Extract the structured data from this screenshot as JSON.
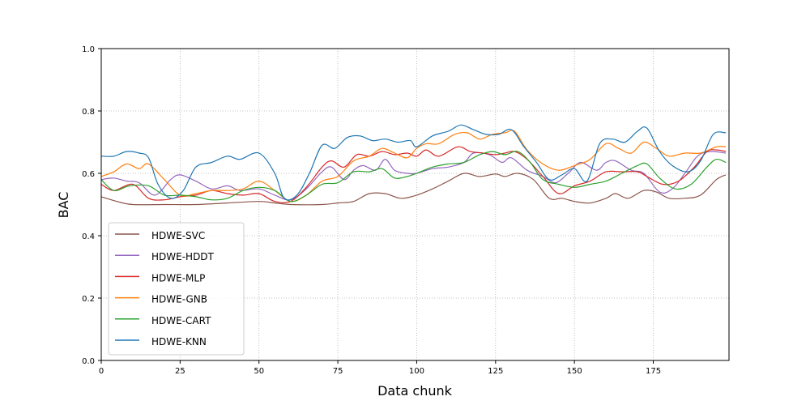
{
  "chart_data": {
    "type": "line",
    "title": "",
    "xlabel": "Data chunk",
    "ylabel": "BAC",
    "xlim": [
      0,
      199
    ],
    "ylim": [
      0.0,
      1.0
    ],
    "xticks": [
      0,
      25,
      50,
      75,
      100,
      125,
      150,
      175
    ],
    "yticks": [
      0.0,
      0.2,
      0.4,
      0.6,
      0.8,
      1.0
    ],
    "xtick_labels": [
      "0",
      "25",
      "50",
      "75",
      "100",
      "125",
      "150",
      "175"
    ],
    "ytick_labels": [
      "0.0",
      "0.2",
      "0.4",
      "0.6",
      "0.8",
      "1.0"
    ],
    "grid": true,
    "legend_position": "lower-left",
    "series": [
      {
        "name": "HDWE-SVC",
        "color": "#8c564b",
        "points": [
          [
            0,
            0.525
          ],
          [
            5,
            0.51
          ],
          [
            10,
            0.5
          ],
          [
            20,
            0.5
          ],
          [
            30,
            0.5
          ],
          [
            40,
            0.505
          ],
          [
            50,
            0.51
          ],
          [
            55,
            0.505
          ],
          [
            60,
            0.5
          ],
          [
            70,
            0.5
          ],
          [
            75,
            0.505
          ],
          [
            80,
            0.51
          ],
          [
            85,
            0.535
          ],
          [
            90,
            0.535
          ],
          [
            95,
            0.52
          ],
          [
            100,
            0.53
          ],
          [
            105,
            0.55
          ],
          [
            110,
            0.575
          ],
          [
            115,
            0.6
          ],
          [
            120,
            0.59
          ],
          [
            125,
            0.598
          ],
          [
            128,
            0.59
          ],
          [
            132,
            0.6
          ],
          [
            137,
            0.58
          ],
          [
            142,
            0.52
          ],
          [
            146,
            0.52
          ],
          [
            150,
            0.51
          ],
          [
            155,
            0.505
          ],
          [
            160,
            0.52
          ],
          [
            163,
            0.535
          ],
          [
            167,
            0.52
          ],
          [
            172,
            0.545
          ],
          [
            176,
            0.54
          ],
          [
            180,
            0.52
          ],
          [
            185,
            0.52
          ],
          [
            190,
            0.53
          ],
          [
            195,
            0.58
          ],
          [
            198,
            0.595
          ]
        ]
      },
      {
        "name": "HDWE-HDDT",
        "color": "#9467bd",
        "points": [
          [
            0,
            0.58
          ],
          [
            4,
            0.585
          ],
          [
            8,
            0.575
          ],
          [
            12,
            0.57
          ],
          [
            17,
            0.53
          ],
          [
            22,
            0.58
          ],
          [
            25,
            0.595
          ],
          [
            30,
            0.575
          ],
          [
            35,
            0.55
          ],
          [
            40,
            0.56
          ],
          [
            44,
            0.545
          ],
          [
            50,
            0.55
          ],
          [
            55,
            0.53
          ],
          [
            60,
            0.515
          ],
          [
            65,
            0.55
          ],
          [
            70,
            0.605
          ],
          [
            73,
            0.62
          ],
          [
            77,
            0.58
          ],
          [
            80,
            0.61
          ],
          [
            83,
            0.625
          ],
          [
            87,
            0.61
          ],
          [
            90,
            0.645
          ],
          [
            93,
            0.61
          ],
          [
            97,
            0.6
          ],
          [
            100,
            0.6
          ],
          [
            105,
            0.615
          ],
          [
            110,
            0.62
          ],
          [
            115,
            0.635
          ],
          [
            118,
            0.665
          ],
          [
            123,
            0.66
          ],
          [
            127,
            0.635
          ],
          [
            130,
            0.65
          ],
          [
            135,
            0.61
          ],
          [
            140,
            0.59
          ],
          [
            144,
            0.57
          ],
          [
            148,
            0.6
          ],
          [
            152,
            0.635
          ],
          [
            157,
            0.61
          ],
          [
            160,
            0.635
          ],
          [
            163,
            0.64
          ],
          [
            168,
            0.61
          ],
          [
            172,
            0.6
          ],
          [
            177,
            0.54
          ],
          [
            181,
            0.55
          ],
          [
            185,
            0.6
          ],
          [
            189,
            0.655
          ],
          [
            193,
            0.67
          ],
          [
            198,
            0.665
          ]
        ]
      },
      {
        "name": "HDWE-MLP",
        "color": "#d62728",
        "points": [
          [
            0,
            0.565
          ],
          [
            4,
            0.545
          ],
          [
            10,
            0.565
          ],
          [
            15,
            0.52
          ],
          [
            20,
            0.515
          ],
          [
            25,
            0.525
          ],
          [
            30,
            0.53
          ],
          [
            35,
            0.545
          ],
          [
            40,
            0.535
          ],
          [
            45,
            0.53
          ],
          [
            50,
            0.535
          ],
          [
            55,
            0.51
          ],
          [
            60,
            0.51
          ],
          [
            65,
            0.555
          ],
          [
            70,
            0.62
          ],
          [
            73,
            0.64
          ],
          [
            77,
            0.62
          ],
          [
            81,
            0.66
          ],
          [
            85,
            0.655
          ],
          [
            89,
            0.67
          ],
          [
            93,
            0.66
          ],
          [
            97,
            0.665
          ],
          [
            100,
            0.655
          ],
          [
            103,
            0.675
          ],
          [
            107,
            0.655
          ],
          [
            113,
            0.685
          ],
          [
            117,
            0.67
          ],
          [
            121,
            0.665
          ],
          [
            125,
            0.66
          ],
          [
            128,
            0.665
          ],
          [
            131,
            0.67
          ],
          [
            135,
            0.645
          ],
          [
            140,
            0.59
          ],
          [
            145,
            0.535
          ],
          [
            150,
            0.56
          ],
          [
            155,
            0.575
          ],
          [
            160,
            0.605
          ],
          [
            165,
            0.605
          ],
          [
            170,
            0.605
          ],
          [
            173,
            0.59
          ],
          [
            178,
            0.565
          ],
          [
            183,
            0.575
          ],
          [
            188,
            0.62
          ],
          [
            192,
            0.67
          ],
          [
            195,
            0.675
          ],
          [
            198,
            0.67
          ]
        ]
      },
      {
        "name": "HDWE-GNB",
        "color": "#ff7f0e",
        "points": [
          [
            0,
            0.59
          ],
          [
            4,
            0.605
          ],
          [
            8,
            0.63
          ],
          [
            12,
            0.615
          ],
          [
            15,
            0.63
          ],
          [
            20,
            0.58
          ],
          [
            25,
            0.53
          ],
          [
            30,
            0.535
          ],
          [
            35,
            0.545
          ],
          [
            40,
            0.545
          ],
          [
            45,
            0.55
          ],
          [
            50,
            0.575
          ],
          [
            55,
            0.545
          ],
          [
            60,
            0.51
          ],
          [
            65,
            0.53
          ],
          [
            70,
            0.575
          ],
          [
            75,
            0.59
          ],
          [
            80,
            0.64
          ],
          [
            85,
            0.655
          ],
          [
            89,
            0.68
          ],
          [
            93,
            0.665
          ],
          [
            97,
            0.65
          ],
          [
            100,
            0.68
          ],
          [
            103,
            0.695
          ],
          [
            107,
            0.695
          ],
          [
            112,
            0.725
          ],
          [
            116,
            0.73
          ],
          [
            120,
            0.71
          ],
          [
            124,
            0.725
          ],
          [
            128,
            0.73
          ],
          [
            131,
            0.735
          ],
          [
            135,
            0.675
          ],
          [
            140,
            0.63
          ],
          [
            145,
            0.61
          ],
          [
            150,
            0.625
          ],
          [
            155,
            0.645
          ],
          [
            160,
            0.695
          ],
          [
            164,
            0.68
          ],
          [
            168,
            0.665
          ],
          [
            172,
            0.7
          ],
          [
            176,
            0.68
          ],
          [
            180,
            0.655
          ],
          [
            185,
            0.665
          ],
          [
            190,
            0.665
          ],
          [
            195,
            0.685
          ],
          [
            198,
            0.685
          ]
        ]
      },
      {
        "name": "HDWE-CART",
        "color": "#2ca02c",
        "points": [
          [
            0,
            0.58
          ],
          [
            4,
            0.545
          ],
          [
            9,
            0.56
          ],
          [
            15,
            0.56
          ],
          [
            20,
            0.53
          ],
          [
            25,
            0.53
          ],
          [
            30,
            0.525
          ],
          [
            35,
            0.515
          ],
          [
            40,
            0.52
          ],
          [
            45,
            0.545
          ],
          [
            50,
            0.555
          ],
          [
            55,
            0.545
          ],
          [
            60,
            0.51
          ],
          [
            65,
            0.53
          ],
          [
            70,
            0.565
          ],
          [
            75,
            0.57
          ],
          [
            80,
            0.605
          ],
          [
            85,
            0.605
          ],
          [
            89,
            0.615
          ],
          [
            93,
            0.585
          ],
          [
            97,
            0.59
          ],
          [
            100,
            0.6
          ],
          [
            105,
            0.62
          ],
          [
            110,
            0.63
          ],
          [
            115,
            0.635
          ],
          [
            120,
            0.66
          ],
          [
            124,
            0.67
          ],
          [
            128,
            0.66
          ],
          [
            132,
            0.67
          ],
          [
            136,
            0.635
          ],
          [
            140,
            0.58
          ],
          [
            145,
            0.565
          ],
          [
            150,
            0.555
          ],
          [
            155,
            0.565
          ],
          [
            160,
            0.575
          ],
          [
            165,
            0.6
          ],
          [
            170,
            0.625
          ],
          [
            173,
            0.63
          ],
          [
            177,
            0.585
          ],
          [
            182,
            0.55
          ],
          [
            187,
            0.565
          ],
          [
            192,
            0.62
          ],
          [
            195,
            0.645
          ],
          [
            198,
            0.635
          ]
        ]
      },
      {
        "name": "HDWE-KNN",
        "color": "#1f77b4",
        "points": [
          [
            0,
            0.655
          ],
          [
            4,
            0.655
          ],
          [
            8,
            0.67
          ],
          [
            12,
            0.665
          ],
          [
            15,
            0.65
          ],
          [
            18,
            0.565
          ],
          [
            22,
            0.52
          ],
          [
            26,
            0.545
          ],
          [
            30,
            0.62
          ],
          [
            35,
            0.635
          ],
          [
            40,
            0.655
          ],
          [
            44,
            0.645
          ],
          [
            50,
            0.665
          ],
          [
            55,
            0.6
          ],
          [
            58,
            0.52
          ],
          [
            62,
            0.53
          ],
          [
            66,
            0.6
          ],
          [
            70,
            0.69
          ],
          [
            74,
            0.68
          ],
          [
            78,
            0.715
          ],
          [
            82,
            0.72
          ],
          [
            86,
            0.705
          ],
          [
            90,
            0.71
          ],
          [
            94,
            0.7
          ],
          [
            98,
            0.705
          ],
          [
            100,
            0.685
          ],
          [
            105,
            0.72
          ],
          [
            110,
            0.735
          ],
          [
            114,
            0.755
          ],
          [
            118,
            0.74
          ],
          [
            122,
            0.725
          ],
          [
            126,
            0.725
          ],
          [
            130,
            0.74
          ],
          [
            134,
            0.685
          ],
          [
            138,
            0.635
          ],
          [
            142,
            0.58
          ],
          [
            146,
            0.595
          ],
          [
            150,
            0.615
          ],
          [
            154,
            0.575
          ],
          [
            158,
            0.695
          ],
          [
            162,
            0.71
          ],
          [
            166,
            0.7
          ],
          [
            170,
            0.735
          ],
          [
            173,
            0.745
          ],
          [
            177,
            0.67
          ],
          [
            181,
            0.625
          ],
          [
            186,
            0.605
          ],
          [
            190,
            0.64
          ],
          [
            194,
            0.725
          ],
          [
            198,
            0.73
          ]
        ]
      }
    ]
  }
}
